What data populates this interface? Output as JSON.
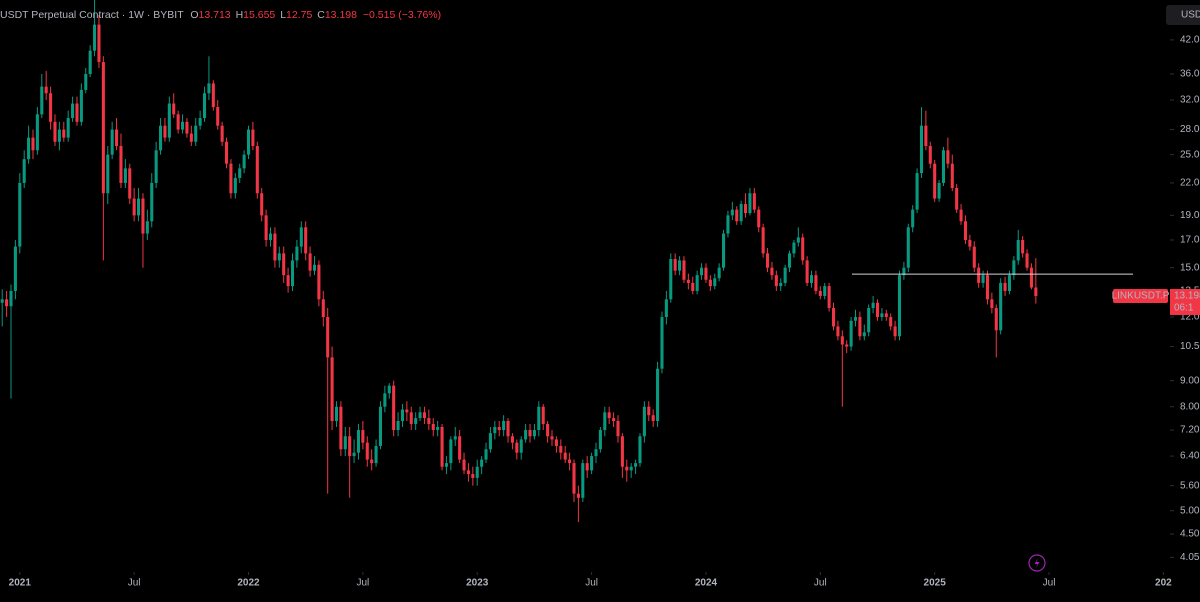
{
  "chart_data": {
    "type": "candlestick",
    "title": "USDT Perpetual Contract · 1W · BYBIT",
    "ohlc_labels": [
      "O",
      "H",
      "L",
      "C"
    ],
    "change_label": "−0.515 (−3.76%)",
    "symbol_label": "LINKUSDT.P",
    "countdown": "06:1",
    "currency": "USD",
    "up_color": "#089981",
    "down_color": "#f23645",
    "log_scale": true,
    "grid": false,
    "xlim": [
      -0.5,
      265.5
    ],
    "ylim": [
      3.79,
      50.3
    ],
    "xticks": [
      {
        "value": 4,
        "label": "2021"
      },
      {
        "value": 30,
        "label": "Jul"
      },
      {
        "value": 56,
        "label": "2022"
      },
      {
        "value": 82,
        "label": "Jul"
      },
      {
        "value": 108,
        "label": "2023"
      },
      {
        "value": 134,
        "label": "Jul"
      },
      {
        "value": 160,
        "label": "2024"
      },
      {
        "value": 186,
        "label": "Jul"
      },
      {
        "value": 212,
        "label": "2025"
      },
      {
        "value": 238,
        "label": "Jul"
      },
      {
        "value": 264,
        "label": "202"
      }
    ],
    "yticks": [
      {
        "value": 42,
        "label": "42.00"
      },
      {
        "value": 36,
        "label": "36.00"
      },
      {
        "value": 32,
        "label": "32.00"
      },
      {
        "value": 28,
        "label": "28.00"
      },
      {
        "value": 25,
        "label": "25.00"
      },
      {
        "value": 22,
        "label": "22.00"
      },
      {
        "value": 19,
        "label": "19.00"
      },
      {
        "value": 17,
        "label": "17.00"
      },
      {
        "value": 15,
        "label": "15.00"
      },
      {
        "value": 13.5,
        "label": "13.50"
      },
      {
        "value": 12,
        "label": "12.00"
      },
      {
        "value": 10.5,
        "label": "10.50"
      },
      {
        "value": 9,
        "label": "9.00"
      },
      {
        "value": 8,
        "label": "8.00"
      },
      {
        "value": 7.2,
        "label": "7.20"
      },
      {
        "value": 6.4,
        "label": "6.40"
      },
      {
        "value": 5.6,
        "label": "5.60"
      },
      {
        "value": 5,
        "label": "5.00"
      },
      {
        "value": 4.5,
        "label": "4.50"
      },
      {
        "value": 4.05,
        "label": "4.05"
      }
    ],
    "hline": {
      "value": 14.57,
      "color": "#d1d4dc"
    },
    "open": [
      12.8,
      13.0,
      12.6,
      13.5,
      16.5,
      22.0,
      24.5,
      27.0,
      25.5,
      30.0,
      34.0,
      33.0,
      29.0,
      26.5,
      28.0,
      27.0,
      29.5,
      31.5,
      29.0,
      33.5,
      36.0,
      40.0,
      45.0,
      38.0,
      21.0,
      25.0,
      28.0,
      26.0,
      22.0,
      23.5,
      20.5,
      19.0,
      20.5,
      17.5,
      18.5,
      22.0,
      25.5,
      28.5,
      27.0,
      31.5,
      30.0,
      28.0,
      29.0,
      27.5,
      26.5,
      28.5,
      29.5,
      33.0,
      34.5,
      31.0,
      28.5,
      26.5,
      24.0,
      21.0,
      22.5,
      23.5,
      25.0,
      28.0,
      26.0,
      21.0,
      19.0,
      17.0,
      17.5,
      15.5,
      16.0,
      14.5,
      13.8,
      15.5,
      16.5,
      18.0,
      16.0,
      14.8,
      15.2,
      13.0,
      12.0,
      10.0,
      7.5,
      8.0,
      6.6,
      7.0,
      6.4,
      6.5,
      7.2,
      6.8,
      6.3,
      6.2,
      6.7,
      8.0,
      8.5,
      8.8,
      7.2,
      7.5,
      7.9,
      7.8,
      7.4,
      7.6,
      7.8,
      7.6,
      7.4,
      7.2,
      7.3,
      6.1,
      6.2,
      6.9,
      7.0,
      6.3,
      6.0,
      5.9,
      5.8,
      6.1,
      6.3,
      6.6,
      7.1,
      7.3,
      7.2,
      7.5,
      7.0,
      6.8,
      6.5,
      6.9,
      7.2,
      7.0,
      7.2,
      8.0,
      7.4,
      7.0,
      6.9,
      6.7,
      6.5,
      6.3,
      6.2,
      5.4,
      5.3,
      6.2,
      6.0,
      6.4,
      6.6,
      7.2,
      7.8,
      7.6,
      7.5,
      7.0,
      6.1,
      6.0,
      6.1,
      6.2,
      7.0,
      8.0,
      7.7,
      7.5,
      9.5,
      12.0,
      13.0,
      15.6,
      14.8,
      15.5,
      14.2,
      14.0,
      13.5,
      14.5,
      15.0,
      14.2,
      13.8,
      14.3,
      15.0,
      17.5,
      19.0,
      19.5,
      18.5,
      20.0,
      19.2,
      21.0,
      19.5,
      18.0,
      16.0,
      15.0,
      14.5,
      13.8,
      14.0,
      15.0,
      16.0,
      16.8,
      17.2,
      15.5,
      14.0,
      14.5,
      13.5,
      13.2,
      13.8,
      12.5,
      11.5,
      11.0,
      10.6,
      10.5,
      11.8,
      12.0,
      11.0,
      11.2,
      12.5,
      12.8,
      12.0,
      12.2,
      12.0,
      11.5,
      11.0,
      14.5,
      15.0,
      18.0,
      19.5,
      23.0,
      28.5,
      26.0,
      24.0,
      20.5,
      22.0,
      25.5,
      24.0,
      21.5,
      19.5,
      18.5,
      17.0,
      16.5,
      15.0,
      14.0,
      14.5,
      13.0,
      12.5,
      11.3,
      14.0,
      13.5,
      14.5,
      15.5,
      17.0,
      16.0,
      15.0,
      13.713
    ],
    "high": [
      13.6,
      13.5,
      13.9,
      17.0,
      23.0,
      25.5,
      28.5,
      28.0,
      31.0,
      36.0,
      36.5,
      34.0,
      30.0,
      29.0,
      29.0,
      30.5,
      32.5,
      32.5,
      34.5,
      37.0,
      41.0,
      52.0,
      47.0,
      39.0,
      26.0,
      29.0,
      29.5,
      27.5,
      24.5,
      24.0,
      21.5,
      21.5,
      21.0,
      19.5,
      23.0,
      26.5,
      29.5,
      29.5,
      32.5,
      33.0,
      30.5,
      30.0,
      29.5,
      28.5,
      29.5,
      30.5,
      34.0,
      39.0,
      35.0,
      32.0,
      29.0,
      27.0,
      24.5,
      23.0,
      24.0,
      25.5,
      28.5,
      29.0,
      26.5,
      21.5,
      19.5,
      18.0,
      18.0,
      16.5,
      16.5,
      15.0,
      16.0,
      17.0,
      18.5,
      18.5,
      16.5,
      15.8,
      15.5,
      13.5,
      12.5,
      10.5,
      8.2,
      8.2,
      7.3,
      7.3,
      6.9,
      7.4,
      7.5,
      7.0,
      6.6,
      6.9,
      8.2,
      8.8,
      8.9,
      9.0,
      7.8,
      8.1,
      8.2,
      8.0,
      7.8,
      8.0,
      8.0,
      7.9,
      7.6,
      7.5,
      7.4,
      6.4,
      7.0,
      7.3,
      7.2,
      6.5,
      6.2,
      6.1,
      6.3,
      6.4,
      6.8,
      7.3,
      7.5,
      7.5,
      7.7,
      7.6,
      7.1,
      6.9,
      7.0,
      7.4,
      7.4,
      7.4,
      8.2,
      8.1,
      7.5,
      7.2,
      7.0,
      6.9,
      6.7,
      6.5,
      6.3,
      5.6,
      6.3,
      6.4,
      6.5,
      6.8,
      7.3,
      8.0,
      8.0,
      7.8,
      7.7,
      7.1,
      6.3,
      6.2,
      6.3,
      7.1,
      8.2,
      8.2,
      7.9,
      9.8,
      12.3,
      13.5,
      16.0,
      16.0,
      15.8,
      15.8,
      14.6,
      14.4,
      14.8,
      15.3,
      15.3,
      14.5,
      14.6,
      15.3,
      17.8,
      19.4,
      20.2,
      19.8,
      20.3,
      21.0,
      21.5,
      21.5,
      19.8,
      18.3,
      16.4,
      15.4,
      14.8,
      14.3,
      15.2,
      16.2,
      17.0,
      18.0,
      17.5,
      15.8,
      14.8,
      14.8,
      13.8,
      14.0,
      14.0,
      12.8,
      11.8,
      11.3,
      10.8,
      12.0,
      12.4,
      12.3,
      11.6,
      12.7,
      13.2,
      13.0,
      12.5,
      12.4,
      12.2,
      11.8,
      14.8,
      15.4,
      18.3,
      19.9,
      23.5,
      31.0,
      30.5,
      26.5,
      24.4,
      22.3,
      25.9,
      27.0,
      25.0,
      21.9,
      20.0,
      19.0,
      17.4,
      16.9,
      15.3,
      14.8,
      14.8,
      13.4,
      12.7,
      14.3,
      14.4,
      14.8,
      15.8,
      17.8,
      17.3,
      16.3,
      15.3,
      15.655
    ],
    "low": [
      11.5,
      12.0,
      8.3,
      13.0,
      16.0,
      21.5,
      24.0,
      24.5,
      25.0,
      29.5,
      32.0,
      28.0,
      26.0,
      25.5,
      26.5,
      26.5,
      29.0,
      28.5,
      28.5,
      33.0,
      35.5,
      39.0,
      37.0,
      15.5,
      20.0,
      24.5,
      25.5,
      21.5,
      21.5,
      20.0,
      18.5,
      18.5,
      15.0,
      17.0,
      18.0,
      21.5,
      25.0,
      26.5,
      26.5,
      29.5,
      27.5,
      27.5,
      27.0,
      26.0,
      26.0,
      28.0,
      29.0,
      32.0,
      30.5,
      28.0,
      26.0,
      23.5,
      20.5,
      20.5,
      22.0,
      23.0,
      24.5,
      25.5,
      20.5,
      18.5,
      16.5,
      16.5,
      15.0,
      15.0,
      14.0,
      13.4,
      13.5,
      15.0,
      16.0,
      15.5,
      14.4,
      14.5,
      12.6,
      11.5,
      5.4,
      7.2,
      7.3,
      6.4,
      6.4,
      5.3,
      6.2,
      6.3,
      6.6,
      6.1,
      6.0,
      6.1,
      6.6,
      7.8,
      8.3,
      7.0,
      7.0,
      7.3,
      7.5,
      7.2,
      7.2,
      7.5,
      7.4,
      7.2,
      7.0,
      7.0,
      6.0,
      5.9,
      6.0,
      6.7,
      6.2,
      5.9,
      5.7,
      5.6,
      5.6,
      5.9,
      6.2,
      6.5,
      6.9,
      7.0,
      7.0,
      6.8,
      6.6,
      6.3,
      6.3,
      6.8,
      6.8,
      6.9,
      7.0,
      7.2,
      6.8,
      6.7,
      6.5,
      6.3,
      6.2,
      6.0,
      5.2,
      4.75,
      5.2,
      5.8,
      5.9,
      6.2,
      6.5,
      7.0,
      7.4,
      7.3,
      6.8,
      5.8,
      5.7,
      5.8,
      5.9,
      6.1,
      6.8,
      7.5,
      7.3,
      7.3,
      9.3,
      11.6,
      12.8,
      14.5,
      14.5,
      14.0,
      13.6,
      13.3,
      13.3,
      14.2,
      14.0,
      13.5,
      13.6,
      14.1,
      14.8,
      17.2,
      18.6,
      18.2,
      18.2,
      18.8,
      19.0,
      19.2,
      17.6,
      15.7,
      14.7,
      14.2,
      13.5,
      13.5,
      13.8,
      14.7,
      15.7,
      16.5,
      15.2,
      13.8,
      13.7,
      13.3,
      13.0,
      13.0,
      12.3,
      11.3,
      10.8,
      8.0,
      10.2,
      10.3,
      11.5,
      10.8,
      10.8,
      11.0,
      12.2,
      11.8,
      11.8,
      11.8,
      11.3,
      10.8,
      10.8,
      14.2,
      14.7,
      17.6,
      19.2,
      22.5,
      25.5,
      23.5,
      20.2,
      20.2,
      21.7,
      23.5,
      21.2,
      19.2,
      18.2,
      16.7,
      16.2,
      14.7,
      13.7,
      13.7,
      12.7,
      12.2,
      10.0,
      11.1,
      13.2,
      13.3,
      14.2,
      15.2,
      15.7,
      14.8,
      13.6,
      12.75
    ],
    "close": [
      13.0,
      12.6,
      13.5,
      16.5,
      22.0,
      24.5,
      27.0,
      25.5,
      30.0,
      34.0,
      33.0,
      29.0,
      26.5,
      28.0,
      27.0,
      29.5,
      31.5,
      29.0,
      33.5,
      36.0,
      40.0,
      45.0,
      38.0,
      21.0,
      25.0,
      28.0,
      26.0,
      22.0,
      23.5,
      20.5,
      19.0,
      20.5,
      17.5,
      18.5,
      22.0,
      25.5,
      28.5,
      27.0,
      31.5,
      30.0,
      28.0,
      29.0,
      27.5,
      26.5,
      28.5,
      29.5,
      33.0,
      34.5,
      31.0,
      28.5,
      26.5,
      24.0,
      21.0,
      22.5,
      23.5,
      25.0,
      28.0,
      26.0,
      21.0,
      19.0,
      17.0,
      17.5,
      15.5,
      16.0,
      14.5,
      13.8,
      15.5,
      16.5,
      18.0,
      16.0,
      14.8,
      15.2,
      13.0,
      12.0,
      10.0,
      7.5,
      8.0,
      6.6,
      7.0,
      6.4,
      6.5,
      7.2,
      6.8,
      6.3,
      6.2,
      6.7,
      8.0,
      8.5,
      8.8,
      7.2,
      7.5,
      7.9,
      7.8,
      7.4,
      7.6,
      7.8,
      7.6,
      7.4,
      7.2,
      7.3,
      6.1,
      6.2,
      6.9,
      7.0,
      6.3,
      6.0,
      5.9,
      5.8,
      6.1,
      6.3,
      6.6,
      7.1,
      7.3,
      7.2,
      7.5,
      7.0,
      6.8,
      6.5,
      6.9,
      7.2,
      7.0,
      7.2,
      8.0,
      7.4,
      7.0,
      6.9,
      6.7,
      6.5,
      6.3,
      6.2,
      5.4,
      5.3,
      6.2,
      6.0,
      6.4,
      6.6,
      7.2,
      7.8,
      7.6,
      7.5,
      7.0,
      6.1,
      6.0,
      6.1,
      6.2,
      7.0,
      8.0,
      7.7,
      7.5,
      9.5,
      12.0,
      13.0,
      15.6,
      14.8,
      15.5,
      14.2,
      14.0,
      13.5,
      14.5,
      15.0,
      14.2,
      13.8,
      14.3,
      15.0,
      17.5,
      19.0,
      19.5,
      18.5,
      20.0,
      19.2,
      21.0,
      19.5,
      18.0,
      16.0,
      15.0,
      14.5,
      13.8,
      14.0,
      15.0,
      16.0,
      16.8,
      17.2,
      15.5,
      14.0,
      14.5,
      13.5,
      13.2,
      13.8,
      12.5,
      11.5,
      11.0,
      10.6,
      10.5,
      11.8,
      12.0,
      11.0,
      11.2,
      12.5,
      12.8,
      12.0,
      12.2,
      12.0,
      11.5,
      11.0,
      14.5,
      15.0,
      18.0,
      19.5,
      23.0,
      28.5,
      26.0,
      24.0,
      20.5,
      22.0,
      25.5,
      24.0,
      21.5,
      19.5,
      18.5,
      17.0,
      16.5,
      15.0,
      14.0,
      14.5,
      13.0,
      12.5,
      11.3,
      14.0,
      13.5,
      14.5,
      15.5,
      17.0,
      16.0,
      15.0,
      13.713,
      13.198
    ]
  }
}
